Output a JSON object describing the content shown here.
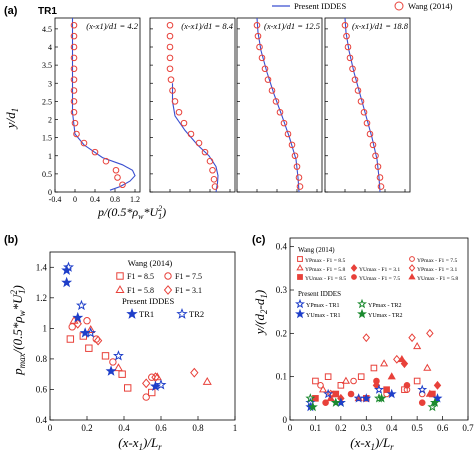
{
  "figure": {
    "panel_a": {
      "label": "(a)",
      "case_label": "TR1",
      "legend": {
        "line": "Present IDDES",
        "markers": "Wang (2014)"
      },
      "ylabel": "y/d1",
      "xlabel": "p/(0.5*ρw*U1²)",
      "subplot_titles": [
        "(x-x1)/d1 = 4.2",
        "(x-x1)/d1 = 8.4",
        "(x-x1)/d1 = 12.5",
        "(x-x1)/d1 = 18.8"
      ]
    },
    "panel_b": {
      "label": "(b)",
      "ylabel": "pmax/(0.5*ρw*U1²)",
      "xlabel": "(x-x1)/Lr",
      "legend_wang_title": "Wang (2014)",
      "legend_wang": [
        "F1 = 8.5",
        "F1 = 7.5",
        "F1 = 5.8",
        "F1 = 3.1"
      ],
      "legend_iddes_title": "Present IDDES",
      "legend_iddes": [
        "TR1",
        "TR2"
      ]
    },
    "panel_c": {
      "label": "(c)",
      "ylabel": "y/(d2-d1)",
      "xlabel": "(x-x1)/Lr",
      "legend_wang_title": "Wang (2014)",
      "legend_wang": [
        "YPmax - F1 = 8.5",
        "YPmax - F1 = 7.5",
        "YPmax - F1 = 5.8",
        "YPmax - F1 = 3.1",
        "YUmax - F1 = 8.5",
        "YUmax - F1 = 7.5",
        "YUmax - F1 = 5.8",
        "YUmax - F1 = 3.1"
      ],
      "legend_iddes_title": "Present IDDES",
      "legend_iddes": [
        "YPmax - TR1",
        "YPmax - TR2",
        "YUmax - TR1",
        "YUmax - TR2"
      ]
    }
  },
  "chart_data": [
    {
      "type": "line",
      "panel": "a",
      "ylim": [
        0,
        4.8
      ],
      "yticks": [
        0,
        0.5,
        1,
        1.5,
        2,
        2.5,
        3,
        3.5,
        4,
        4.5
      ],
      "xticks": [
        -0.4,
        0,
        0.4,
        0.8,
        1.2
      ],
      "subplots": [
        {
          "title": "(x-x1)/d1 = 4.2",
          "xlim": [
            -0.4,
            1.3
          ],
          "markers": [
            [
              -0.02,
              4.6
            ],
            [
              -0.02,
              4.3
            ],
            [
              -0.02,
              4.0
            ],
            [
              -0.02,
              3.7
            ],
            [
              -0.02,
              3.4
            ],
            [
              -0.02,
              3.1
            ],
            [
              -0.02,
              2.8
            ],
            [
              -0.02,
              2.5
            ],
            [
              -0.02,
              2.2
            ],
            [
              0.0,
              1.9
            ],
            [
              0.03,
              1.6
            ],
            [
              0.18,
              1.35
            ],
            [
              0.4,
              1.1
            ],
            [
              0.62,
              0.85
            ],
            [
              0.82,
              0.6
            ],
            [
              0.85,
              0.4
            ],
            [
              0.95,
              0.2
            ]
          ],
          "line": [
            [
              -0.05,
              4.8
            ],
            [
              -0.05,
              3.5
            ],
            [
              -0.05,
              2.2
            ],
            [
              0.0,
              1.6
            ],
            [
              0.18,
              1.3
            ],
            [
              0.55,
              0.95
            ],
            [
              0.95,
              0.75
            ],
            [
              1.15,
              0.6
            ],
            [
              1.2,
              0.45
            ],
            [
              1.1,
              0.3
            ],
            [
              0.9,
              0.15
            ],
            [
              0.7,
              0.05
            ]
          ]
        },
        {
          "title": "(x-x1)/d1 = 8.4",
          "xlim": [
            -0.4,
            1.3
          ],
          "markers": [
            [
              0.0,
              4.6
            ],
            [
              0.0,
              4.3
            ],
            [
              0.0,
              4.0
            ],
            [
              0.0,
              3.7
            ],
            [
              0.0,
              3.4
            ],
            [
              0.02,
              3.1
            ],
            [
              0.05,
              2.8
            ],
            [
              0.1,
              2.5
            ],
            [
              0.18,
              2.2
            ],
            [
              0.28,
              1.9
            ],
            [
              0.42,
              1.6
            ],
            [
              0.58,
              1.35
            ],
            [
              0.7,
              1.1
            ],
            [
              0.8,
              0.85
            ],
            [
              0.85,
              0.6
            ],
            [
              0.88,
              0.35
            ],
            [
              0.9,
              0.15
            ]
          ],
          "line": [
            [
              0.05,
              3.0
            ],
            [
              0.05,
              2.5
            ],
            [
              0.1,
              2.1
            ],
            [
              0.3,
              1.7
            ],
            [
              0.55,
              1.3
            ],
            [
              0.78,
              1.0
            ],
            [
              0.92,
              0.7
            ],
            [
              0.96,
              0.45
            ],
            [
              0.95,
              0.25
            ],
            [
              0.92,
              0.0
            ]
          ]
        },
        {
          "title": "(x-x1)/d1 = 12.5",
          "xlim": [
            -0.4,
            1.3
          ],
          "markers": [
            [
              0.0,
              4.6
            ],
            [
              0.02,
              4.3
            ],
            [
              0.05,
              4.0
            ],
            [
              0.1,
              3.7
            ],
            [
              0.16,
              3.4
            ],
            [
              0.22,
              3.1
            ],
            [
              0.3,
              2.8
            ],
            [
              0.38,
              2.5
            ],
            [
              0.46,
              2.2
            ],
            [
              0.54,
              1.9
            ],
            [
              0.62,
              1.6
            ],
            [
              0.7,
              1.3
            ],
            [
              0.76,
              1.0
            ],
            [
              0.8,
              0.7
            ],
            [
              0.84,
              0.4
            ],
            [
              0.86,
              0.15
            ]
          ],
          "line": [
            [
              0.0,
              4.8
            ],
            [
              0.02,
              4.4
            ],
            [
              0.08,
              3.9
            ],
            [
              0.2,
              3.3
            ],
            [
              0.34,
              2.7
            ],
            [
              0.5,
              2.1
            ],
            [
              0.65,
              1.5
            ],
            [
              0.78,
              0.9
            ],
            [
              0.82,
              0.4
            ],
            [
              0.84,
              0.0
            ]
          ]
        },
        {
          "title": "(x-x1)/d1 = 18.8",
          "xlim": [
            -0.4,
            1.3
          ],
          "markers": [
            [
              0.0,
              4.6
            ],
            [
              0.03,
              4.3
            ],
            [
              0.06,
              4.0
            ],
            [
              0.1,
              3.7
            ],
            [
              0.15,
              3.4
            ],
            [
              0.2,
              3.1
            ],
            [
              0.26,
              2.8
            ],
            [
              0.32,
              2.5
            ],
            [
              0.38,
              2.2
            ],
            [
              0.44,
              1.9
            ],
            [
              0.5,
              1.6
            ],
            [
              0.56,
              1.3
            ],
            [
              0.61,
              1.0
            ],
            [
              0.66,
              0.7
            ],
            [
              0.7,
              0.4
            ],
            [
              0.72,
              0.15
            ]
          ],
          "line": [
            [
              0.0,
              4.8
            ],
            [
              0.02,
              4.4
            ],
            [
              0.08,
              3.9
            ],
            [
              0.18,
              3.3
            ],
            [
              0.3,
              2.7
            ],
            [
              0.42,
              2.1
            ],
            [
              0.54,
              1.5
            ],
            [
              0.64,
              0.9
            ],
            [
              0.68,
              0.4
            ],
            [
              0.7,
              0.0
            ]
          ]
        }
      ]
    },
    {
      "type": "scatter",
      "panel": "b",
      "xlim": [
        0,
        1
      ],
      "ylim": [
        0.4,
        1.5
      ],
      "xticks": [
        0,
        0.2,
        0.4,
        0.6,
        0.8,
        1.0
      ],
      "yticks": [
        0.4,
        0.6,
        0.8,
        1.0,
        1.2,
        1.4
      ],
      "series": [
        {
          "name": "F1 = 8.5",
          "marker": "square",
          "color": "#e8413a",
          "filled": false,
          "points": [
            [
              0.11,
              0.93
            ],
            [
              0.18,
              0.95
            ],
            [
              0.21,
              0.87
            ],
            [
              0.3,
              0.82
            ],
            [
              0.39,
              0.7
            ],
            [
              0.42,
              0.61
            ],
            [
              0.55,
              0.58
            ]
          ]
        },
        {
          "name": "F1 = 7.5",
          "marker": "circle",
          "color": "#e8413a",
          "filled": false,
          "points": [
            [
              0.12,
              1.01
            ],
            [
              0.2,
              1.05
            ],
            [
              0.25,
              0.93
            ],
            [
              0.34,
              0.78
            ],
            [
              0.52,
              0.55
            ],
            [
              0.55,
              0.68
            ]
          ]
        },
        {
          "name": "F1 = 5.8",
          "marker": "triangle",
          "color": "#e8413a",
          "filled": false,
          "points": [
            [
              0.13,
              1.05
            ],
            [
              0.22,
              0.99
            ],
            [
              0.37,
              0.74
            ],
            [
              0.58,
              0.68
            ],
            [
              0.85,
              0.65
            ]
          ]
        },
        {
          "name": "F1 = 3.1",
          "marker": "diamond",
          "color": "#e8413a",
          "filled": false,
          "points": [
            [
              0.15,
              1.03
            ],
            [
              0.26,
              0.92
            ],
            [
              0.52,
              0.64
            ],
            [
              0.57,
              0.68
            ],
            [
              0.78,
              0.71
            ]
          ]
        },
        {
          "name": "TR1",
          "marker": "star",
          "color": "#1f3fc9",
          "filled": true,
          "points": [
            [
              0.09,
              1.38
            ],
            [
              0.09,
              1.3
            ],
            [
              0.15,
              1.07
            ],
            [
              0.19,
              0.97
            ],
            [
              0.33,
              0.72
            ],
            [
              0.57,
              0.62
            ]
          ]
        },
        {
          "name": "TR2",
          "marker": "star",
          "color": "#1f3fc9",
          "filled": false,
          "points": [
            [
              0.1,
              1.4
            ],
            [
              0.17,
              1.15
            ],
            [
              0.22,
              0.97
            ],
            [
              0.37,
              0.82
            ],
            [
              0.6,
              0.63
            ]
          ]
        }
      ]
    },
    {
      "type": "scatter",
      "panel": "c",
      "xlim": [
        0,
        0.7
      ],
      "ylim": [
        0,
        0.42
      ],
      "xticks": [
        0,
        0.1,
        0.2,
        0.3,
        0.4,
        0.5,
        0.6,
        0.7
      ],
      "yticks": [
        0,
        0.1,
        0.2,
        0.3,
        0.4
      ],
      "series": [
        {
          "name": "YPmax - F1 = 8.5",
          "marker": "square",
          "color": "#e8413a",
          "filled": false,
          "points": [
            [
              0.1,
              0.09
            ],
            [
              0.15,
              0.1
            ],
            [
              0.2,
              0.08
            ],
            [
              0.28,
              0.1
            ],
            [
              0.33,
              0.12
            ],
            [
              0.45,
              0.07
            ],
            [
              0.5,
              0.09
            ]
          ]
        },
        {
          "name": "YPmax - F1 = 7.5",
          "marker": "circle",
          "color": "#e8413a",
          "filled": false,
          "points": [
            [
              0.12,
              0.08
            ],
            [
              0.17,
              0.06
            ],
            [
              0.25,
              0.09
            ],
            [
              0.38,
              0.06
            ],
            [
              0.46,
              0.07
            ],
            [
              0.52,
              0.06
            ]
          ]
        },
        {
          "name": "YPmax - F1 = 5.8",
          "marker": "triangle",
          "color": "#e8413a",
          "filled": false,
          "points": [
            [
              0.13,
              0.07
            ],
            [
              0.22,
              0.09
            ],
            [
              0.37,
              0.13
            ],
            [
              0.5,
              0.17
            ],
            [
              0.54,
              0.12
            ]
          ]
        },
        {
          "name": "YPmax - F1 = 3.1",
          "marker": "diamond",
          "color": "#e8413a",
          "filled": false,
          "points": [
            [
              0.16,
              0.06
            ],
            [
              0.3,
              0.19
            ],
            [
              0.42,
              0.14
            ],
            [
              0.48,
              0.19
            ],
            [
              0.55,
              0.2
            ]
          ]
        },
        {
          "name": "YUmax - F1 = 8.5",
          "marker": "square",
          "color": "#e8413a",
          "filled": true,
          "points": [
            [
              0.1,
              0.05
            ],
            [
              0.18,
              0.06
            ],
            [
              0.3,
              0.05
            ],
            [
              0.38,
              0.07
            ],
            [
              0.56,
              0.06
            ]
          ]
        },
        {
          "name": "YUmax - F1 = 7.5",
          "marker": "circle",
          "color": "#e8413a",
          "filled": true,
          "points": [
            [
              0.14,
              0.04
            ],
            [
              0.24,
              0.06
            ],
            [
              0.34,
              0.09
            ],
            [
              0.46,
              0.08
            ],
            [
              0.52,
              0.04
            ]
          ]
        },
        {
          "name": "YUmax - F1 = 5.8",
          "marker": "triangle",
          "color": "#e8413a",
          "filled": true,
          "points": [
            [
              0.16,
              0.05
            ],
            [
              0.27,
              0.05
            ],
            [
              0.4,
              0.1
            ],
            [
              0.44,
              0.14
            ],
            [
              0.55,
              0.06
            ]
          ]
        },
        {
          "name": "YUmax - F1 = 3.1",
          "marker": "diamond",
          "color": "#e8413a",
          "filled": true,
          "points": [
            [
              0.2,
              0.05
            ],
            [
              0.34,
              0.08
            ],
            [
              0.45,
              0.13
            ],
            [
              0.58,
              0.08
            ]
          ]
        },
        {
          "name": "YPmax - TR1",
          "marker": "star",
          "color": "#1f3fc9",
          "filled": false,
          "points": [
            [
              0.08,
              0.04
            ],
            [
              0.15,
              0.06
            ],
            [
              0.27,
              0.05
            ],
            [
              0.35,
              0.07
            ],
            [
              0.52,
              0.07
            ]
          ]
        },
        {
          "name": "YPmax - TR2",
          "marker": "star",
          "color": "#1b8a2f",
          "filled": false,
          "points": [
            [
              0.08,
              0.05
            ],
            [
              0.2,
              0.04
            ],
            [
              0.35,
              0.05
            ],
            [
              0.56,
              0.03
            ]
          ]
        },
        {
          "name": "YUmax - TR1",
          "marker": "star",
          "color": "#1f3fc9",
          "filled": true,
          "points": [
            [
              0.08,
              0.03
            ],
            [
              0.2,
              0.04
            ],
            [
              0.3,
              0.05
            ],
            [
              0.4,
              0.06
            ],
            [
              0.58,
              0.05
            ]
          ]
        },
        {
          "name": "YUmax - TR2",
          "marker": "star",
          "color": "#1b8a2f",
          "filled": true,
          "points": [
            [
              0.09,
              0.03
            ],
            [
              0.18,
              0.04
            ],
            [
              0.36,
              0.05
            ],
            [
              0.57,
              0.04
            ]
          ]
        }
      ]
    }
  ]
}
